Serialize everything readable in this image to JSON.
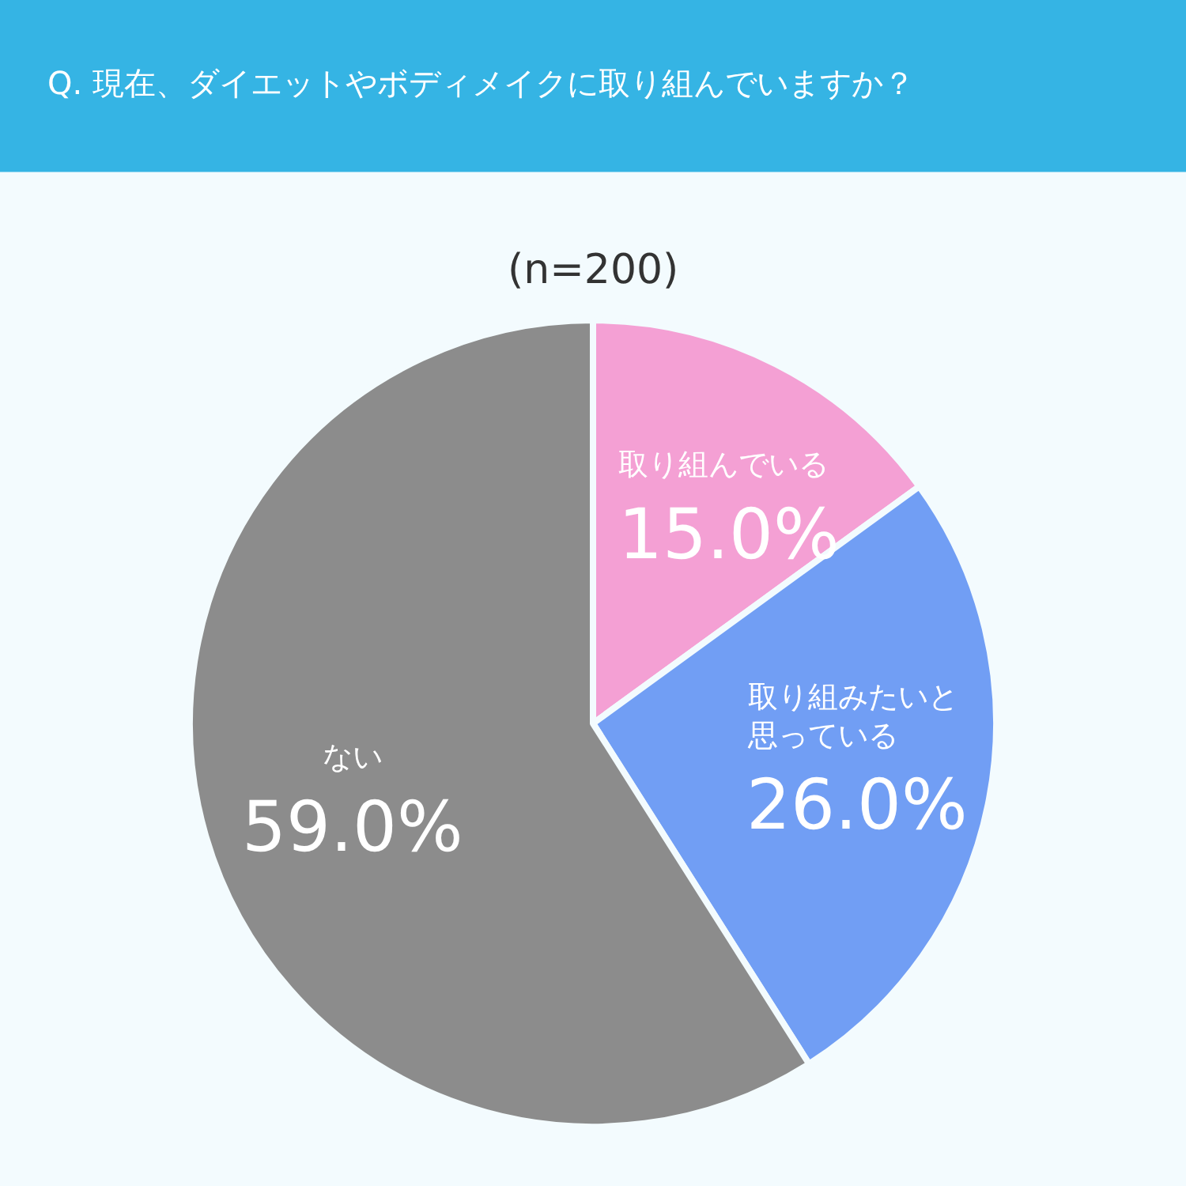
{
  "chart_data": {
    "type": "pie",
    "title": "Q. 現在、ダイエットやボディメイクに取り組んでいますか？",
    "subtitle": "(n=200)",
    "categories": [
      "取り組んでいる",
      "取り組みたいと思っている",
      "ない"
    ],
    "values": [
      15.0,
      26.0,
      59.0
    ],
    "value_labels": [
      "15.0%",
      "26.0%",
      "59.0%"
    ],
    "colors": [
      "#f4a0d4",
      "#719ef4",
      "#8c8c8c"
    ],
    "legend": false
  }
}
